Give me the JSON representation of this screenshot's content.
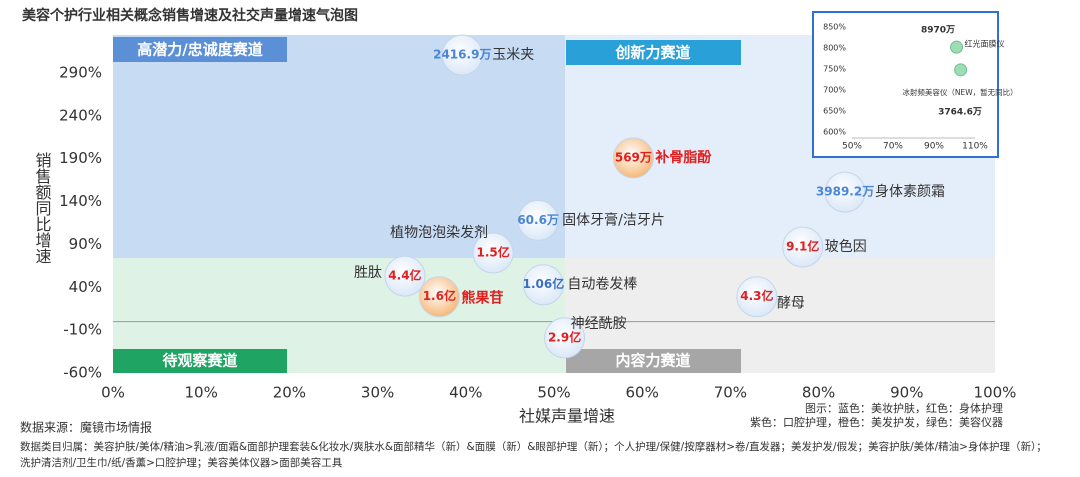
{
  "title": "美容个护行业相关概念销售增速及社交声量增速气泡图",
  "chart_data": [
    {
      "type": "scatter",
      "x_label": "社媒声量增速",
      "y_label": "销售额同比增速",
      "xlim": [
        0,
        100
      ],
      "ylim": [
        -60,
        340
      ],
      "xticks": [
        {
          "value": 0,
          "label": "0%"
        },
        {
          "value": 10,
          "label": "10%"
        },
        {
          "value": 20,
          "label": "20%"
        },
        {
          "value": 30,
          "label": "30%"
        },
        {
          "value": 40,
          "label": "40%"
        },
        {
          "value": 50,
          "label": "50%"
        },
        {
          "value": 60,
          "label": "60%"
        },
        {
          "value": 70,
          "label": "70%"
        },
        {
          "value": 80,
          "label": "80%"
        },
        {
          "value": 90,
          "label": "90%"
        },
        {
          "value": 100,
          "label": "100%"
        }
      ],
      "yticks": [
        {
          "value": -60,
          "label": "-60%"
        },
        {
          "value": -10,
          "label": "-10%"
        },
        {
          "value": 40,
          "label": "40%"
        },
        {
          "value": 90,
          "label": "90%"
        },
        {
          "value": 140,
          "label": "140%"
        },
        {
          "value": 190,
          "label": "190%"
        },
        {
          "value": 240,
          "label": "240%"
        },
        {
          "value": 290,
          "label": "290%"
        }
      ],
      "quadrants": [
        "高潜力/忠诚度赛道",
        "创新力赛道",
        "待观察赛道",
        "内容力赛道"
      ],
      "points": [
        {
          "name": "玉米夹",
          "label": "2416.9万",
          "x": 39.6,
          "y": 311,
          "color": "#4a86d8",
          "bubble": "#dbe8f8"
        },
        {
          "name": "补骨脂酚",
          "label": "569万",
          "x": 59,
          "y": 191,
          "color": "#e02020",
          "bubble": "#f5b97a"
        },
        {
          "name": "身体素颜霜",
          "label": "3989.2万",
          "x": 83,
          "y": 151,
          "color": "#4a86d8",
          "bubble": "#dbe8f8"
        },
        {
          "name": "固体牙膏/洁牙片",
          "label": "60.6万",
          "x": 48.2,
          "y": 118,
          "color": "#4a86d8",
          "bubble": "#dbe8f8"
        },
        {
          "name": "植物泡泡染发剂",
          "label": "1.5亿",
          "x": 43.1,
          "y": 80,
          "color": "#e02020",
          "bubble": "#dbe8f8"
        },
        {
          "name": "玻色因",
          "label": "9.1亿",
          "x": 78.2,
          "y": 87,
          "color": "#e02020",
          "bubble": "#dbe8f8"
        },
        {
          "name": "胜肽",
          "label": "4.4亿",
          "x": 33.1,
          "y": 53,
          "color": "#e02020",
          "bubble": "#dbe8f8"
        },
        {
          "name": "熊果苷",
          "label": "1.6亿",
          "x": 37,
          "y": 29,
          "color": "#e02020",
          "bubble": "#f5b97a"
        },
        {
          "name": "自动卷发棒",
          "label": "1.06亿",
          "x": 48.8,
          "y": 43,
          "color": "#3a6fc0",
          "bubble": "#dbe8f8"
        },
        {
          "name": "酵母",
          "label": "4.3亿",
          "x": 73,
          "y": 29,
          "color": "#e02020",
          "bubble": "#dbe8f8"
        },
        {
          "name": "神经酰胺",
          "label": "2.9亿",
          "x": 51.2,
          "y": -19,
          "color": "#e02020",
          "bubble": "#dbe8f8"
        }
      ]
    },
    {
      "type": "scatter",
      "xlim": [
        50,
        110
      ],
      "ylim": [
        600,
        850
      ],
      "xticks": [
        {
          "value": 50,
          "label": "50%"
        },
        {
          "value": 70,
          "label": "70%"
        },
        {
          "value": 90,
          "label": "90%"
        },
        {
          "value": 110,
          "label": "110%"
        }
      ],
      "yticks": [
        {
          "value": 600,
          "label": "600%"
        },
        {
          "value": 650,
          "label": "650%"
        },
        {
          "value": 700,
          "label": "700%"
        },
        {
          "value": 750,
          "label": "750%"
        },
        {
          "value": 800,
          "label": "800%"
        },
        {
          "value": 850,
          "label": "850%"
        }
      ],
      "points": [
        {
          "name": "红光面膜仪",
          "label": "8970万",
          "x": 101,
          "y": 802,
          "bubble": "#9fdcb4"
        },
        {
          "name": "冰射频美容仪（NEW，暂无同比）",
          "label": "3764.6万",
          "x": 103,
          "y": 748,
          "bubble": "#9fdcb4"
        }
      ]
    }
  ],
  "source": "数据来源：魔镜市场情报",
  "legend": [
    "图示：蓝色：美妆护肤，红色：身体护理",
    "紫色：口腔护理，橙色：美发护发，绿色：美容仪器"
  ],
  "notes": [
    "数据类目归属：美容护肤/美体/精油>乳液/面霜&面部护理套装&化妆水/爽肤水&面部精华（新）&面膜（新）&眼部护理（新）；个人护理/保健/按摩器材>卷/直发器；美发护发/假发；美容护肤/美体/精油>身体护理（新）；",
    "洗护清洁剂/卫生巾/纸/香薰>口腔护理；美容美体仪器>面部美容工具"
  ]
}
